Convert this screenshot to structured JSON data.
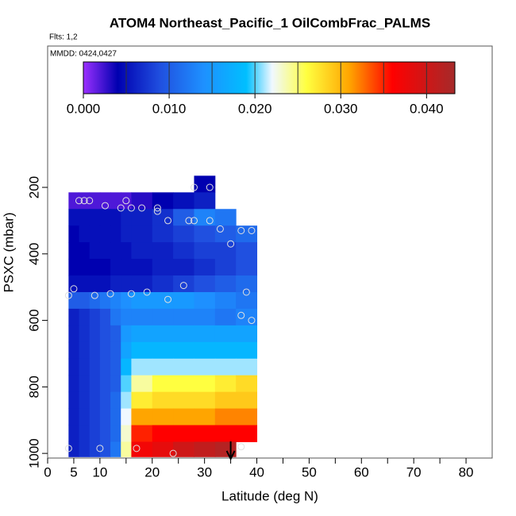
{
  "chart_data": {
    "type": "heatmap",
    "title": "ATOM4 Northeast_Pacific_1 OilCombFrac_PALMS",
    "subtitle": "Flts: 1,2",
    "annotation": "MMDD: 0424,0427",
    "x_label": "Latitude (deg N)",
    "y_label": "PSXC (mbar)",
    "xlim": [
      0,
      85
    ],
    "ylim": [
      1014,
      -225
    ],
    "xticks": [
      0,
      5,
      10,
      20,
      30,
      40,
      50,
      60,
      70,
      80
    ],
    "xminor": [
      15,
      25,
      35,
      45,
      55,
      65,
      75
    ],
    "yticks": [
      200,
      400,
      600,
      800,
      1000
    ],
    "x_edges": [
      4,
      6,
      8,
      10,
      12,
      14,
      16,
      20,
      24,
      28,
      32,
      36,
      40
    ],
    "y_edges": [
      165,
      215,
      265,
      315,
      365,
      415,
      465,
      515,
      565,
      615,
      665,
      715,
      765,
      815,
      865,
      915,
      965,
      1010
    ],
    "values": [
      [
        null,
        null,
        null,
        null,
        null,
        null,
        null,
        null,
        null,
        0.004,
        null,
        null
      ],
      [
        0.002,
        0.002,
        0.002,
        0.002,
        0.002,
        0.002,
        0.003,
        0.004,
        0.005,
        0.006,
        null,
        null
      ],
      [
        0.005,
        0.005,
        0.005,
        0.005,
        0.005,
        0.006,
        0.006,
        0.007,
        0.01,
        0.013,
        0.012,
        null
      ],
      [
        0.004,
        0.005,
        0.005,
        0.005,
        0.005,
        0.006,
        0.006,
        0.007,
        0.008,
        0.009,
        0.01,
        0.011
      ],
      [
        0.004,
        0.004,
        0.005,
        0.005,
        0.005,
        0.005,
        0.006,
        0.006,
        0.007,
        0.008,
        0.008,
        0.009
      ],
      [
        0.004,
        0.004,
        0.004,
        0.004,
        0.005,
        0.005,
        0.005,
        0.006,
        0.006,
        0.007,
        0.008,
        0.009
      ],
      [
        0.005,
        0.005,
        0.005,
        0.005,
        0.006,
        0.006,
        0.006,
        0.007,
        0.008,
        0.009,
        0.01,
        0.011
      ],
      [
        0.01,
        0.01,
        0.011,
        0.012,
        0.013,
        0.014,
        0.015,
        0.015,
        0.015,
        0.014,
        0.013,
        0.012
      ],
      [
        0.006,
        0.007,
        0.008,
        0.009,
        0.012,
        0.013,
        0.013,
        0.013,
        0.013,
        0.013,
        0.012,
        0.013
      ],
      [
        0.006,
        0.007,
        0.008,
        0.009,
        0.01,
        0.015,
        0.016,
        0.016,
        0.016,
        0.016,
        0.016,
        0.016
      ],
      [
        0.006,
        0.007,
        0.008,
        0.009,
        0.01,
        0.016,
        0.018,
        0.018,
        0.018,
        0.018,
        0.018,
        0.018
      ],
      [
        0.006,
        0.007,
        0.008,
        0.009,
        0.01,
        0.018,
        0.021,
        0.021,
        0.021,
        0.021,
        0.021,
        0.021
      ],
      [
        0.006,
        0.007,
        0.008,
        0.009,
        0.01,
        0.02,
        0.024,
        0.026,
        0.026,
        0.026,
        0.027,
        0.028
      ],
      [
        0.006,
        0.007,
        0.008,
        0.009,
        0.011,
        0.021,
        0.027,
        0.028,
        0.028,
        0.028,
        0.029,
        0.029
      ],
      [
        0.006,
        0.007,
        0.008,
        0.009,
        0.011,
        0.022,
        0.031,
        0.031,
        0.031,
        0.031,
        0.032,
        0.032
      ],
      [
        0.006,
        0.007,
        0.008,
        0.009,
        0.011,
        0.023,
        0.035,
        0.036,
        0.036,
        0.036,
        0.036,
        0.036
      ],
      [
        0.006,
        0.007,
        0.008,
        0.009,
        0.012,
        0.024,
        0.037,
        0.038,
        0.04,
        0.041,
        0.042,
        null
      ]
    ],
    "points": {
      "x": [
        6,
        7,
        8,
        11,
        14,
        15,
        16,
        18,
        21,
        21,
        23,
        27,
        28,
        31,
        33,
        35,
        37,
        39,
        28,
        31,
        5,
        4,
        9,
        12,
        16,
        19,
        23,
        26,
        38,
        37,
        39,
        4,
        10,
        17,
        24,
        37
      ],
      "y": [
        240,
        240,
        240,
        255,
        262,
        240,
        262,
        262,
        272,
        262,
        300,
        300,
        300,
        300,
        325,
        370,
        330,
        330,
        200,
        200,
        505,
        525,
        525,
        520,
        520,
        515,
        537,
        495,
        515,
        585,
        600,
        985,
        985,
        985,
        1000,
        980
      ]
    },
    "marker_lat": 35,
    "colorscale": {
      "values": [
        0,
        0.004,
        0.009,
        0.014,
        0.019,
        0.022,
        0.026,
        0.031,
        0.036,
        0.0433
      ],
      "colors": [
        "#9b30ff",
        "#0000b0",
        "#2050e0",
        "#1e90ff",
        "#00bfff",
        "#f0f8ff",
        "#ffff40",
        "#ffa500",
        "#ff0000",
        "#a52a2a"
      ]
    },
    "colorbar_range": [
      0,
      0.0433
    ],
    "colorbar_ticks": [
      {
        "value": 0,
        "label": "0.000"
      },
      {
        "value": 0.01,
        "label": "0.010"
      },
      {
        "value": 0.02,
        "label": "0.020"
      },
      {
        "value": 0.03,
        "label": "0.030"
      },
      {
        "value": 0.04,
        "label": "0.040"
      }
    ],
    "colorbar_lines": [
      0.005,
      0.01,
      0.015,
      0.02,
      0.025,
      0.03,
      0.035,
      0.04
    ]
  }
}
